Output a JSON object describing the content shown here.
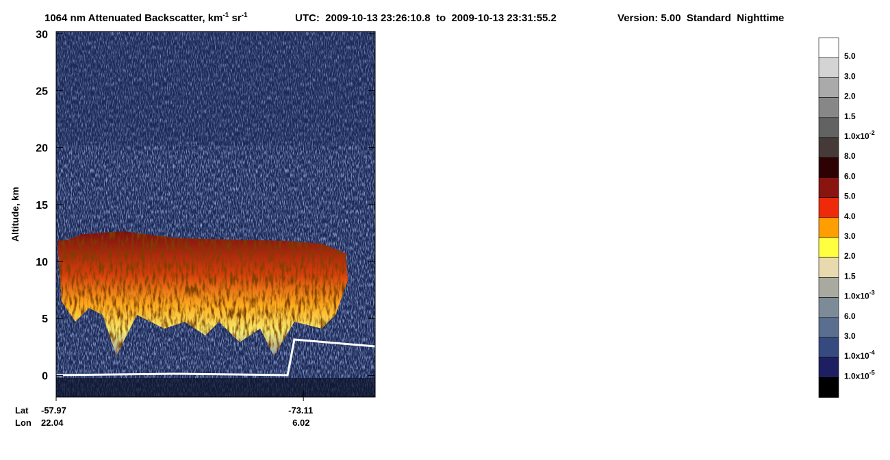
{
  "chart_data": {
    "type": "curtain",
    "title": [
      "1064 nm Attenuated Backscatter, km",
      "-1",
      " sr",
      "-1"
    ],
    "utc": "UTC:  2009-10-13 23:26:10.8  to  2009-10-13 23:31:55.2",
    "version": "Version: 5.00  Standard  Nighttime",
    "ylabel": "Altitude, km",
    "ylim": [
      -1.9,
      30.2
    ],
    "yticks": [
      0,
      5,
      10,
      15,
      20,
      25,
      30
    ],
    "x_row_labels": [
      "Lat",
      "Lon"
    ],
    "x_ticks": [
      {
        "lat": -57.97,
        "lon": 22.04
      },
      {
        "lat": -73.11,
        "lon": 6.02
      }
    ],
    "colorbar": {
      "colors": [
        "#ffffff",
        "#d4d4d4",
        "#aaaaaa",
        "#878787",
        "#626262",
        "#453a37",
        "#2e0202",
        "#8a1410",
        "#ee2a0a",
        "#ff9e00",
        "#ffff40",
        "#e8d9ae",
        "#a8aaa0",
        "#7d8b98",
        "#5a6e90",
        "#364a80",
        "#1e1f62",
        "#000000"
      ],
      "labels": [
        {
          "text": "5.0"
        },
        {
          "text": "3.0"
        },
        {
          "text": "2.0"
        },
        {
          "text": "1.5"
        },
        {
          "text": "1.0x10",
          "exp": "-2"
        },
        {
          "text": "8.0"
        },
        {
          "text": "6.0"
        },
        {
          "text": "5.0"
        },
        {
          "text": "4.0"
        },
        {
          "text": "3.0"
        },
        {
          "text": "2.0"
        },
        {
          "text": "1.5"
        },
        {
          "text": "1.0x10",
          "exp": "-3"
        },
        {
          "text": "6.0"
        },
        {
          "text": "3.0"
        },
        {
          "text": "1.0x10",
          "exp": "-4"
        },
        {
          "text": "1.0x10",
          "exp": "-5"
        }
      ]
    }
  }
}
